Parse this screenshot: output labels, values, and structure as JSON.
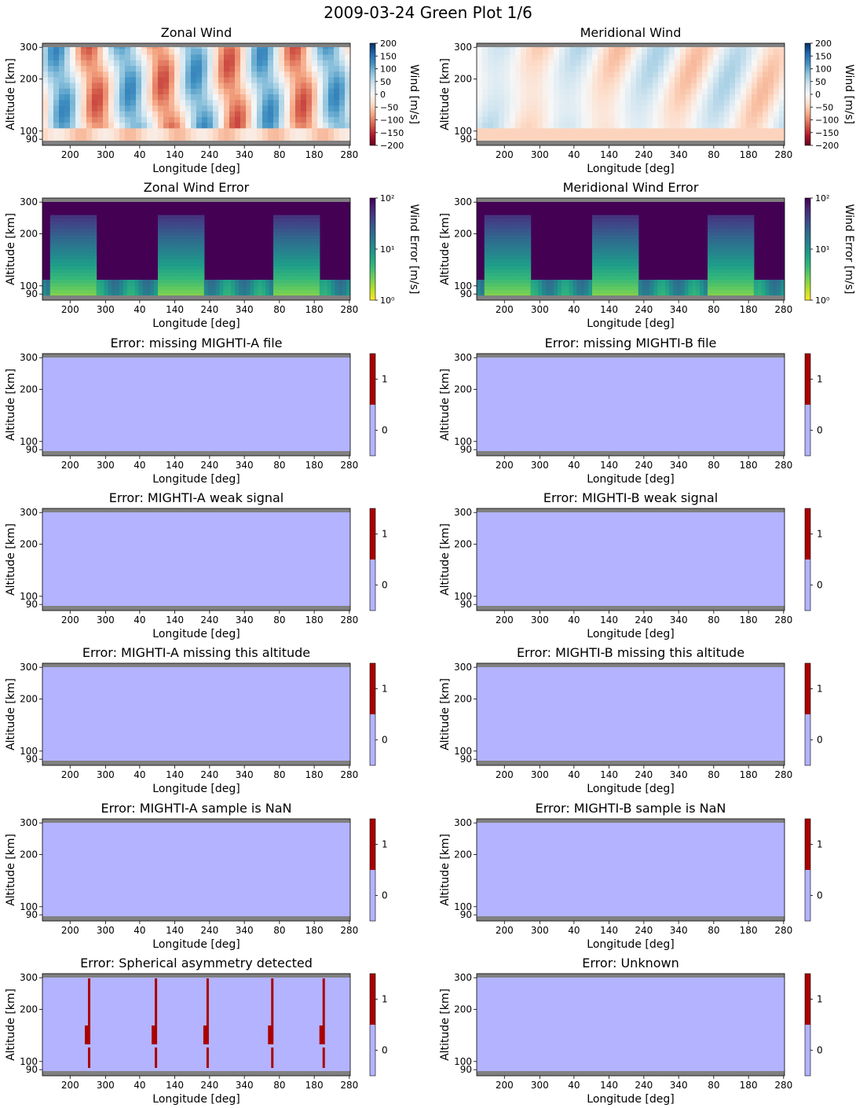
{
  "suptitle": "2009-03-24 Green Plot 1/6",
  "chart_data": [
    {
      "type": "heatmap",
      "title": "Zonal Wind",
      "xlabel": "Longitude [deg]",
      "ylabel": "Altitude [km]",
      "x_ticks": [
        "200",
        "300",
        "40",
        "140",
        "240",
        "340",
        "80",
        "180",
        "280"
      ],
      "y_ticks": [
        "90",
        "100",
        "200",
        "300"
      ],
      "y_scale": "log",
      "colorbar": {
        "kind": "diverging",
        "label": "Wind [m/s]",
        "range": [
          -200,
          200
        ],
        "scale": "linear",
        "ticks": [
          "200",
          "150",
          "100",
          "50",
          "0",
          "−50",
          "−100",
          "−150",
          "−200"
        ],
        "colors": [
          "#67001f",
          "#ffffff",
          "#053061"
        ]
      },
      "pattern": "alternating-bands"
    },
    {
      "type": "heatmap",
      "title": "Meridional Wind",
      "xlabel": "Longitude [deg]",
      "ylabel": "Altitude [km]",
      "x_ticks": [
        "200",
        "300",
        "40",
        "140",
        "240",
        "340",
        "80",
        "180",
        "280"
      ],
      "y_ticks": [
        "90",
        "100",
        "200",
        "300"
      ],
      "y_scale": "log",
      "colorbar": {
        "kind": "diverging",
        "label": "Wind [m/s]",
        "range": [
          -200,
          200
        ],
        "scale": "linear",
        "ticks": [
          "200",
          "150",
          "100",
          "50",
          "0",
          "−50",
          "−100",
          "−150",
          "−200"
        ],
        "colors": [
          "#67001f",
          "#ffffff",
          "#053061"
        ]
      },
      "pattern": "faint-bands"
    },
    {
      "type": "heatmap",
      "title": "Zonal Wind Error",
      "xlabel": "Longitude [deg]",
      "ylabel": "Altitude [km]",
      "x_ticks": [
        "200",
        "300",
        "40",
        "140",
        "240",
        "340",
        "80",
        "180",
        "280"
      ],
      "y_ticks": [
        "90",
        "100",
        "200",
        "300"
      ],
      "y_scale": "log",
      "colorbar": {
        "kind": "viridis",
        "label": "Wind Error [m/s]",
        "range": [
          1,
          100
        ],
        "scale": "log",
        "ticks": [
          "10²",
          "10¹",
          "10⁰"
        ]
      },
      "pattern": "error-blobs"
    },
    {
      "type": "heatmap",
      "title": "Meridional Wind Error",
      "xlabel": "Longitude [deg]",
      "ylabel": "Altitude [km]",
      "x_ticks": [
        "200",
        "300",
        "40",
        "140",
        "240",
        "340",
        "80",
        "180",
        "280"
      ],
      "y_ticks": [
        "90",
        "100",
        "200",
        "300"
      ],
      "y_scale": "log",
      "colorbar": {
        "kind": "viridis",
        "label": "Wind Error [m/s]",
        "range": [
          1,
          100
        ],
        "scale": "log",
        "ticks": [
          "10²",
          "10¹",
          "10⁰"
        ]
      },
      "pattern": "error-blobs"
    },
    {
      "type": "heatmap",
      "title": "Error: missing MIGHTI-A file",
      "xlabel": "Longitude [deg]",
      "ylabel": "Altitude [km]",
      "x_ticks": [
        "200",
        "300",
        "40",
        "140",
        "240",
        "340",
        "80",
        "180",
        "280"
      ],
      "y_ticks": [
        "90",
        "100",
        "200",
        "300"
      ],
      "colorbar": {
        "kind": "binary",
        "ticks": [
          "1",
          "0"
        ],
        "colors": [
          "#b3b3ff",
          "#aa0000"
        ]
      },
      "pattern": "flat",
      "value": 0
    },
    {
      "type": "heatmap",
      "title": "Error: missing MIGHTI-B file",
      "xlabel": "Longitude [deg]",
      "ylabel": "Altitude [km]",
      "x_ticks": [
        "200",
        "300",
        "40",
        "140",
        "240",
        "340",
        "80",
        "180",
        "280"
      ],
      "y_ticks": [
        "90",
        "100",
        "200",
        "300"
      ],
      "colorbar": {
        "kind": "binary",
        "ticks": [
          "1",
          "0"
        ],
        "colors": [
          "#b3b3ff",
          "#aa0000"
        ]
      },
      "pattern": "flat",
      "value": 0
    },
    {
      "type": "heatmap",
      "title": "Error: MIGHTI-A weak signal",
      "xlabel": "Longitude [deg]",
      "ylabel": "Altitude [km]",
      "x_ticks": [
        "200",
        "300",
        "40",
        "140",
        "240",
        "340",
        "80",
        "180",
        "280"
      ],
      "y_ticks": [
        "90",
        "100",
        "200",
        "300"
      ],
      "colorbar": {
        "kind": "binary",
        "ticks": [
          "1",
          "0"
        ],
        "colors": [
          "#b3b3ff",
          "#aa0000"
        ]
      },
      "pattern": "flat",
      "value": 0
    },
    {
      "type": "heatmap",
      "title": "Error: MIGHTI-B weak signal",
      "xlabel": "Longitude [deg]",
      "ylabel": "Altitude [km]",
      "x_ticks": [
        "200",
        "300",
        "40",
        "140",
        "240",
        "340",
        "80",
        "180",
        "280"
      ],
      "y_ticks": [
        "90",
        "100",
        "200",
        "300"
      ],
      "colorbar": {
        "kind": "binary",
        "ticks": [
          "1",
          "0"
        ],
        "colors": [
          "#b3b3ff",
          "#aa0000"
        ]
      },
      "pattern": "flat",
      "value": 0
    },
    {
      "type": "heatmap",
      "title": "Error: MIGHTI-A missing this altitude",
      "xlabel": "Longitude [deg]",
      "ylabel": "Altitude [km]",
      "x_ticks": [
        "200",
        "300",
        "40",
        "140",
        "240",
        "340",
        "80",
        "180",
        "280"
      ],
      "y_ticks": [
        "90",
        "100",
        "200",
        "300"
      ],
      "colorbar": {
        "kind": "binary",
        "ticks": [
          "1",
          "0"
        ],
        "colors": [
          "#b3b3ff",
          "#aa0000"
        ]
      },
      "pattern": "flat",
      "value": 0
    },
    {
      "type": "heatmap",
      "title": "Error: MIGHTI-B missing this altitude",
      "xlabel": "Longitude [deg]",
      "ylabel": "Altitude [km]",
      "x_ticks": [
        "200",
        "300",
        "40",
        "140",
        "240",
        "340",
        "80",
        "180",
        "280"
      ],
      "y_ticks": [
        "90",
        "100",
        "200",
        "300"
      ],
      "colorbar": {
        "kind": "binary",
        "ticks": [
          "1",
          "0"
        ],
        "colors": [
          "#b3b3ff",
          "#aa0000"
        ]
      },
      "pattern": "flat",
      "value": 0
    },
    {
      "type": "heatmap",
      "title": "Error: MIGHTI-A sample is NaN",
      "xlabel": "Longitude [deg]",
      "ylabel": "Altitude [km]",
      "x_ticks": [
        "200",
        "300",
        "40",
        "140",
        "240",
        "340",
        "80",
        "180",
        "280"
      ],
      "y_ticks": [
        "90",
        "100",
        "200",
        "300"
      ],
      "colorbar": {
        "kind": "binary",
        "ticks": [
          "1",
          "0"
        ],
        "colors": [
          "#b3b3ff",
          "#aa0000"
        ]
      },
      "pattern": "flat",
      "value": 0
    },
    {
      "type": "heatmap",
      "title": "Error: MIGHTI-B sample is NaN",
      "xlabel": "Longitude [deg]",
      "ylabel": "Altitude [km]",
      "x_ticks": [
        "200",
        "300",
        "40",
        "140",
        "240",
        "340",
        "80",
        "180",
        "280"
      ],
      "y_ticks": [
        "90",
        "100",
        "200",
        "300"
      ],
      "colorbar": {
        "kind": "binary",
        "ticks": [
          "1",
          "0"
        ],
        "colors": [
          "#b3b3ff",
          "#aa0000"
        ]
      },
      "pattern": "flat",
      "value": 0
    },
    {
      "type": "heatmap",
      "title": "Error: Spherical asymmetry detected",
      "xlabel": "Longitude [deg]",
      "ylabel": "Altitude [km]",
      "x_ticks": [
        "200",
        "300",
        "40",
        "140",
        "240",
        "340",
        "80",
        "180",
        "280"
      ],
      "y_ticks": [
        "90",
        "100",
        "200",
        "300"
      ],
      "colorbar": {
        "kind": "binary",
        "ticks": [
          "1",
          "0"
        ],
        "colors": [
          "#b3b3ff",
          "#aa0000"
        ]
      },
      "pattern": "flat-with-flags",
      "value": 0
    },
    {
      "type": "heatmap",
      "title": "Error: Unknown",
      "xlabel": "Longitude [deg]",
      "ylabel": "Altitude [km]",
      "x_ticks": [
        "200",
        "300",
        "40",
        "140",
        "240",
        "340",
        "80",
        "180",
        "280"
      ],
      "y_ticks": [
        "90",
        "100",
        "200",
        "300"
      ],
      "colorbar": {
        "kind": "binary",
        "ticks": [
          "1",
          "0"
        ],
        "colors": [
          "#b3b3ff",
          "#aa0000"
        ]
      },
      "pattern": "flat",
      "value": 0
    }
  ]
}
